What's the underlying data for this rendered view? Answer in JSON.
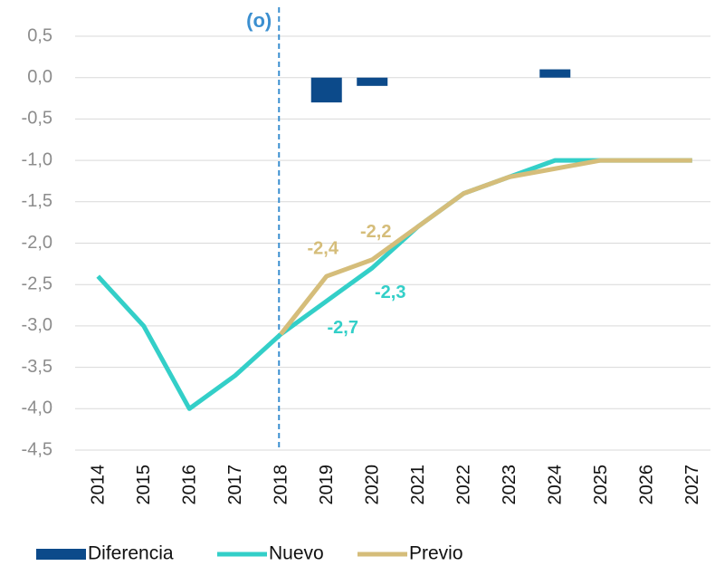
{
  "chart_data": {
    "type": "line",
    "categories": [
      "2014",
      "2015",
      "2016",
      "2017",
      "2018",
      "2019",
      "2020",
      "2021",
      "2022",
      "2023",
      "2024",
      "2025",
      "2026",
      "2027"
    ],
    "series": [
      {
        "name": "Diferencia",
        "type": "bar",
        "color": "#0c4a8a",
        "values": [
          null,
          null,
          null,
          null,
          null,
          -0.3,
          -0.1,
          null,
          null,
          null,
          0.1,
          null,
          null,
          null
        ]
      },
      {
        "name": "Nuevo",
        "type": "line",
        "color": "#33cfc8",
        "values": [
          -2.4,
          -3.0,
          -4.0,
          -3.6,
          -3.1,
          -2.7,
          -2.3,
          -1.8,
          -1.4,
          -1.2,
          -1.0,
          -1.0,
          -1.0,
          -1.0
        ],
        "value_labels": [
          null,
          null,
          null,
          null,
          null,
          "-2,7",
          "-2,3",
          null,
          null,
          null,
          null,
          null,
          null,
          null
        ]
      },
      {
        "name": "Previo",
        "type": "line",
        "color": "#d5bd7a",
        "values": [
          null,
          null,
          null,
          null,
          -3.1,
          -2.4,
          -2.2,
          -1.8,
          -1.4,
          -1.2,
          -1.1,
          -1.0,
          -1.0,
          -1.0
        ],
        "value_labels": [
          null,
          null,
          null,
          null,
          null,
          "-2,4",
          "-2,2",
          null,
          null,
          null,
          null,
          null,
          null,
          null
        ]
      }
    ],
    "ylim": [
      -4.5,
      0.5
    ],
    "yticks": [
      {
        "value": 0.5,
        "label": "0,5"
      },
      {
        "value": 0,
        "label": "0,0"
      },
      {
        "value": -0.5,
        "label": "-0,5"
      },
      {
        "value": -1,
        "label": "-1,0"
      },
      {
        "value": -1.5,
        "label": "-1,5"
      },
      {
        "value": -2,
        "label": "-2,0"
      },
      {
        "value": -2.5,
        "label": "-2,5"
      },
      {
        "value": -3,
        "label": "-3,0"
      },
      {
        "value": -3.5,
        "label": "-3,5"
      },
      {
        "value": -4,
        "label": "-4,0"
      },
      {
        "value": -4.5,
        "label": "-4,5"
      }
    ],
    "grid": true,
    "annotation": {
      "text": "(o)",
      "x": "2018",
      "color": "#3b8fd0"
    }
  }
}
